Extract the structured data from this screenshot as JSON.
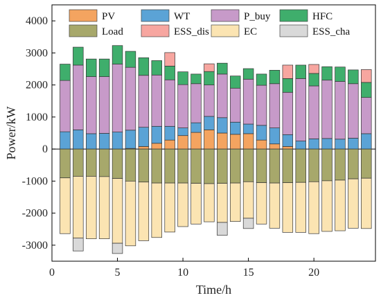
{
  "chart_data": {
    "type": "bar",
    "stacked": true,
    "xlabel": "Time/h",
    "ylabel": "Power/kW",
    "xlim": [
      0,
      24.7
    ],
    "ylim": [
      -3500,
      4500
    ],
    "xticks": [
      0,
      5,
      10,
      15,
      20
    ],
    "yticks": [
      -3000,
      -2000,
      -1000,
      0,
      1000,
      2000,
      3000,
      4000
    ],
    "x": [
      1,
      2,
      3,
      4,
      5,
      6,
      7,
      8,
      9,
      10,
      11,
      12,
      13,
      14,
      15,
      16,
      17,
      18,
      19,
      20,
      21,
      22,
      23,
      24
    ],
    "legend": {
      "position": "top",
      "columns": 4
    },
    "colors": {
      "PV": "#f4a460",
      "WT": "#5ba3d6",
      "P_buy": "#c79ac9",
      "HFC": "#3fae6c",
      "Load": "#a7a86b",
      "ESS_dis": "#f7a6a0",
      "EC": "#fbe4b2",
      "ESS_cha": "#d9d9d9"
    },
    "legend_order": [
      "PV",
      "WT",
      "P_buy",
      "HFC",
      "Load",
      "ESS_dis",
      "EC",
      "ESS_cha"
    ],
    "positive_stack_order": [
      "PV",
      "WT",
      "P_buy",
      "HFC",
      "ESS_dis"
    ],
    "negative_stack_order": [
      "Load",
      "EC",
      "ESS_cha"
    ],
    "series": [
      {
        "name": "PV",
        "values": [
          0,
          0,
          0,
          0,
          0,
          20,
          80,
          180,
          280,
          420,
          520,
          600,
          500,
          460,
          480,
          280,
          160,
          80,
          0,
          0,
          0,
          0,
          0,
          0
        ]
      },
      {
        "name": "WT",
        "values": [
          540,
          600,
          480,
          490,
          530,
          570,
          600,
          530,
          430,
          240,
          300,
          420,
          480,
          380,
          300,
          460,
          500,
          370,
          250,
          320,
          330,
          310,
          340,
          480
        ]
      },
      {
        "name": "P_buy",
        "values": [
          1600,
          2020,
          1780,
          1770,
          2120,
          1960,
          1620,
          1600,
          1450,
          1350,
          1220,
          980,
          1360,
          1060,
          1400,
          1250,
          1380,
          1320,
          1950,
          1650,
          1820,
          1800,
          1700,
          1130
        ]
      },
      {
        "name": "HFC",
        "values": [
          510,
          560,
          550,
          550,
          580,
          500,
          550,
          450,
          430,
          400,
          300,
          420,
          340,
          380,
          330,
          350,
          420,
          430,
          420,
          390,
          420,
          450,
          430,
          470
        ]
      },
      {
        "name": "ESS_dis",
        "values": [
          0,
          0,
          0,
          0,
          0,
          0,
          0,
          0,
          420,
          0,
          0,
          240,
          0,
          0,
          0,
          0,
          0,
          420,
          0,
          280,
          0,
          0,
          0,
          400
        ]
      },
      {
        "name": "Load",
        "values": [
          -900,
          -850,
          -850,
          -860,
          -920,
          -1000,
          -1030,
          -1060,
          -1060,
          -1060,
          -1070,
          -1080,
          -1070,
          -1060,
          -1020,
          -1050,
          -1060,
          -1050,
          -1040,
          -1020,
          -990,
          -970,
          -930,
          -910
        ]
      },
      {
        "name": "EC",
        "values": [
          -1740,
          -1930,
          -1950,
          -1940,
          -2020,
          -2020,
          -1830,
          -1700,
          -1530,
          -1360,
          -1270,
          -1190,
          -1220,
          -1200,
          -1140,
          -1290,
          -1410,
          -1550,
          -1560,
          -1620,
          -1580,
          -1580,
          -1540,
          -1570
        ]
      },
      {
        "name": "ESS_cha",
        "values": [
          0,
          -400,
          0,
          0,
          -320,
          0,
          0,
          0,
          0,
          0,
          0,
          0,
          -400,
          0,
          -320,
          0,
          0,
          0,
          0,
          0,
          0,
          0,
          0,
          0
        ]
      }
    ]
  }
}
